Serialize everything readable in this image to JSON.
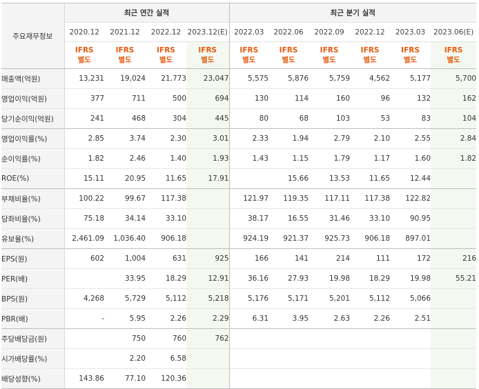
{
  "header": {
    "row_label": "주요재무정보",
    "annual_title": "최근 연간 실적",
    "quarter_title": "최근 분기 실적",
    "annual_periods": [
      "2020.12",
      "2021.12",
      "2022.12",
      "2023.12(E)"
    ],
    "quarter_periods": [
      "2022.03",
      "2022.06",
      "2022.09",
      "2022.12",
      "2023.03",
      "2023.06(E)"
    ],
    "basis_top": "IFRS",
    "basis_bottom": "별도"
  },
  "rows": [
    {
      "label": "매출액(억원)",
      "values": [
        "13,231",
        "19,024",
        "21,773",
        "23,047",
        "5,575",
        "5,876",
        "5,759",
        "4,562",
        "5,177",
        "5,700"
      ]
    },
    {
      "label": "영업이익(억원)",
      "values": [
        "377",
        "711",
        "500",
        "694",
        "130",
        "114",
        "160",
        "96",
        "132",
        "162"
      ]
    },
    {
      "label": "당기순이익(억원)",
      "values": [
        "241",
        "468",
        "304",
        "445",
        "80",
        "68",
        "103",
        "53",
        "83",
        "104"
      ]
    },
    {
      "label": "영업이익률(%)",
      "values": [
        "2.85",
        "3.74",
        "2.30",
        "3.01",
        "2.33",
        "1.94",
        "2.79",
        "2.10",
        "2.55",
        "2.84"
      ]
    },
    {
      "label": "순이익률(%)",
      "values": [
        "1.82",
        "2.46",
        "1.40",
        "1.93",
        "1.43",
        "1.15",
        "1.79",
        "1.17",
        "1.60",
        "1.82"
      ]
    },
    {
      "label": "ROE(%)",
      "values": [
        "15.11",
        "20.95",
        "11.65",
        "17.91",
        "",
        "15.66",
        "13.53",
        "11.65",
        "12.44",
        ""
      ]
    },
    {
      "label": "부채비율(%)",
      "values": [
        "100.22",
        "99.67",
        "117.38",
        "",
        "121.97",
        "119.35",
        "117.11",
        "117.38",
        "122.82",
        ""
      ]
    },
    {
      "label": "당좌비율(%)",
      "values": [
        "75.18",
        "34.14",
        "33.10",
        "",
        "38.17",
        "16.55",
        "31.46",
        "33.10",
        "90.95",
        ""
      ]
    },
    {
      "label": "유보율(%)",
      "values": [
        "2,461.09",
        "1,036.40",
        "906.18",
        "",
        "924.19",
        "921.37",
        "925.73",
        "906.18",
        "897.01",
        ""
      ]
    },
    {
      "label": "EPS(원)",
      "values": [
        "602",
        "1,004",
        "631",
        "925",
        "166",
        "141",
        "214",
        "111",
        "172",
        "216"
      ]
    },
    {
      "label": "PER(배)",
      "values": [
        "",
        "33.95",
        "18.29",
        "12.91",
        "36.16",
        "27.93",
        "19.98",
        "18.29",
        "19.98",
        "55.21"
      ]
    },
    {
      "label": "BPS(원)",
      "values": [
        "4,268",
        "5,729",
        "5,112",
        "5,218",
        "5,176",
        "5,171",
        "5,201",
        "5,112",
        "5,066",
        ""
      ]
    },
    {
      "label": "PBR(배)",
      "values": [
        "-",
        "5.95",
        "2.26",
        "2.29",
        "6.31",
        "3.95",
        "2.63",
        "2.26",
        "2.51",
        ""
      ]
    },
    {
      "label": "주당배당금(원)",
      "values": [
        "",
        "750",
        "760",
        "762",
        "",
        "",
        "",
        "",
        "",
        ""
      ]
    },
    {
      "label": "시가배당률(%)",
      "values": [
        "",
        "2.20",
        "6.58",
        "",
        "",
        "",
        "",
        "",
        "",
        ""
      ]
    },
    {
      "label": "배당성향(%)",
      "values": [
        "143.86",
        "77.10",
        "120.36",
        "",
        "",
        "",
        "",
        "",
        "",
        ""
      ]
    }
  ],
  "groups_start": [
    0,
    3,
    6,
    9,
    13
  ],
  "estimate_columns": [
    3,
    9
  ],
  "colors": {
    "basis": "#e8590c",
    "estimate_bg": "#f3f9f1",
    "label_bg": "#f4f4f4"
  }
}
